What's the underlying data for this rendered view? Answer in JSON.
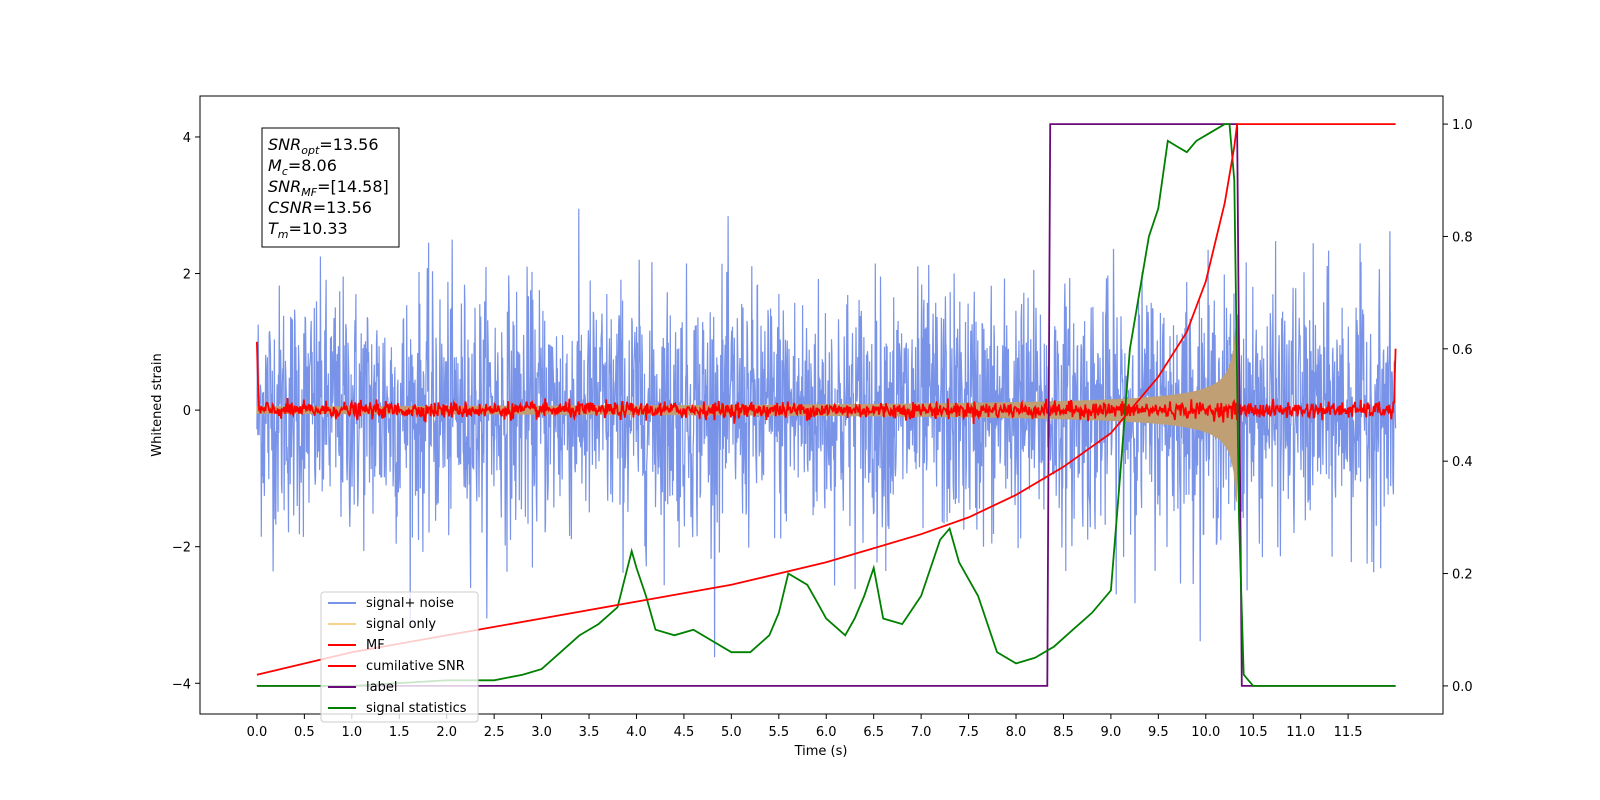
{
  "chart_data": {
    "type": "line",
    "xlabel": "Time (s)",
    "ylabel": "Whitened strain",
    "xlim": [
      -0.6,
      12.5
    ],
    "ylim": [
      -4.45,
      4.6
    ],
    "y2lim": [
      -0.05,
      1.05
    ],
    "x_ticks": [
      "0.0",
      "0.5",
      "1.0",
      "1.5",
      "2.0",
      "2.5",
      "3.0",
      "3.5",
      "4.0",
      "4.5",
      "5.0",
      "5.5",
      "6.0",
      "6.5",
      "7.0",
      "7.5",
      "8.0",
      "8.5",
      "9.0",
      "9.5",
      "10.0",
      "10.5",
      "11.0",
      "11.5"
    ],
    "y_ticks": [
      "4",
      "2",
      "0",
      "−2",
      "−4"
    ],
    "y2_ticks": [
      "1.0",
      "0.8",
      "0.6",
      "0.4",
      "0.2",
      "0.0"
    ],
    "legend_position": "lower-left",
    "legend": [
      {
        "label": "signal+ noise",
        "color": "#7893e8"
      },
      {
        "label": "signal only",
        "color": "#f5d38a"
      },
      {
        "label": "MF",
        "color": "#ff0000"
      },
      {
        "label": "cumilative SNR",
        "color": "#ff0000"
      },
      {
        "label": "label",
        "color": "#6a0a7a"
      },
      {
        "label": "signal statistics",
        "color": "#008000"
      }
    ],
    "annotation": {
      "lines": [
        {
          "sym": "SNR",
          "sub": "opt",
          "val": "=13.56"
        },
        {
          "sym": "M",
          "sub": "c",
          "val": "=8.06"
        },
        {
          "sym": "SNR",
          "sub": "MF",
          "val": "=[14.58]"
        },
        {
          "sym": "CSNR",
          "sub": "",
          "val": "=13.56"
        },
        {
          "sym": "T",
          "sub": "m",
          "val": "=10.33"
        }
      ]
    },
    "series": [
      {
        "name": "signal+ noise",
        "axis": "left",
        "noise_std": 0.9,
        "x_range": [
          0,
          12
        ]
      },
      {
        "name": "signal only",
        "axis": "left",
        "chirp_merger_time": 10.33,
        "peak_amplitude": 1.8
      },
      {
        "name": "MF",
        "axis": "left",
        "noise_std": 0.06
      },
      {
        "name": "cumilative SNR",
        "axis": "right",
        "x": [
          0,
          1,
          2,
          3,
          4,
          5,
          6,
          7,
          7.5,
          8,
          8.5,
          9,
          9.5,
          9.8,
          10.0,
          10.2,
          10.3,
          10.33,
          12.0
        ],
        "y": [
          0.02,
          0.06,
          0.09,
          0.12,
          0.15,
          0.18,
          0.22,
          0.27,
          0.3,
          0.34,
          0.39,
          0.45,
          0.55,
          0.63,
          0.72,
          0.86,
          0.96,
          1.0,
          1.0
        ]
      },
      {
        "name": "label",
        "axis": "right",
        "x": [
          0,
          8.33,
          8.36,
          10.33,
          10.38,
          12.0
        ],
        "y": [
          0.0,
          0.0,
          1.0,
          1.0,
          0.0,
          0.0
        ]
      },
      {
        "name": "signal statistics",
        "axis": "right",
        "x": [
          0,
          0.5,
          1.0,
          1.5,
          2.0,
          2.5,
          2.8,
          3.0,
          3.2,
          3.4,
          3.6,
          3.8,
          3.95,
          4.0,
          4.1,
          4.2,
          4.4,
          4.6,
          4.8,
          5.0,
          5.2,
          5.4,
          5.5,
          5.6,
          5.8,
          5.9,
          6.0,
          6.2,
          6.3,
          6.4,
          6.5,
          6.6,
          6.8,
          7.0,
          7.2,
          7.3,
          7.4,
          7.5,
          7.6,
          7.8,
          8.0,
          8.2,
          8.4,
          8.6,
          8.8,
          9.0,
          9.1,
          9.2,
          9.3,
          9.4,
          9.5,
          9.6,
          9.7,
          9.8,
          9.9,
          10.0,
          10.1,
          10.2,
          10.25,
          10.3,
          10.35,
          10.4,
          10.5,
          12.0
        ],
        "y": [
          0.0,
          0.0,
          0.0,
          0.005,
          0.01,
          0.01,
          0.02,
          0.03,
          0.06,
          0.09,
          0.11,
          0.14,
          0.24,
          0.21,
          0.16,
          0.1,
          0.09,
          0.1,
          0.08,
          0.06,
          0.06,
          0.09,
          0.13,
          0.2,
          0.18,
          0.15,
          0.12,
          0.09,
          0.12,
          0.16,
          0.21,
          0.12,
          0.11,
          0.16,
          0.26,
          0.28,
          0.22,
          0.19,
          0.16,
          0.06,
          0.04,
          0.05,
          0.07,
          0.1,
          0.13,
          0.17,
          0.38,
          0.6,
          0.7,
          0.8,
          0.85,
          0.97,
          0.96,
          0.95,
          0.97,
          0.98,
          0.99,
          1.0,
          1.0,
          0.9,
          0.3,
          0.02,
          0.0,
          0.0
        ]
      }
    ]
  }
}
